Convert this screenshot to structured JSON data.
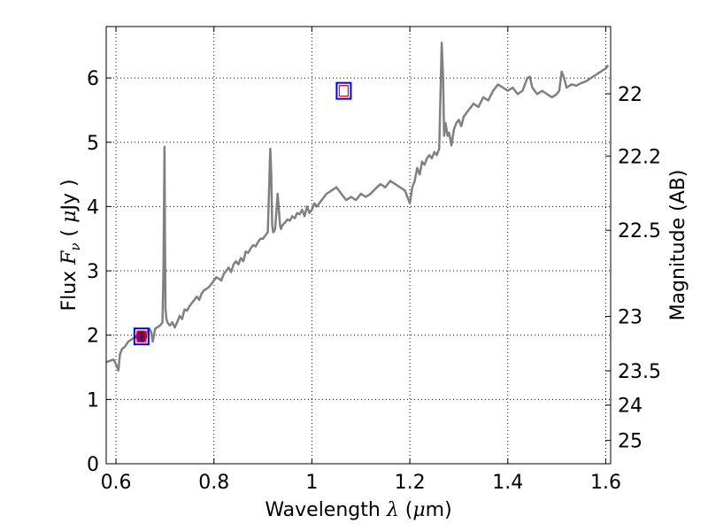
{
  "chart_data": {
    "type": "line",
    "xlabel": {
      "prefix": "Wavelength ",
      "symbol": "λ",
      "suffix_open": " (",
      "unit_symbol": "μ",
      "unit_rest": "m)"
    },
    "ylabel": {
      "prefix": "Flux ",
      "symbol": "F",
      "subscript": "ν",
      "paren_open": " ( ",
      "unit_symbol": "μ",
      "unit_rest": "Jy )"
    },
    "y2label": "Magnitude (AB)",
    "xlim": [
      0.58,
      1.61
    ],
    "ylim": [
      0,
      6.8
    ],
    "xticks": [
      0.6,
      0.8,
      1.0,
      1.2,
      1.4,
      1.6
    ],
    "xtick_labels": [
      "0.6",
      "0.8",
      "1",
      "1.2",
      "1.4",
      "1.6"
    ],
    "yticks": [
      0,
      1,
      2,
      3,
      4,
      5,
      6
    ],
    "ytick_labels": [
      "0",
      "1",
      "2",
      "3",
      "4",
      "5",
      "6"
    ],
    "y2ticks": [
      22,
      22.2,
      22.5,
      23,
      23.5,
      24,
      25
    ],
    "y2tick_labels": [
      "22",
      "22.2",
      "22.5",
      "23",
      "23.5",
      "24",
      "25"
    ],
    "grid": true,
    "colors": {
      "spectrum": "#808080",
      "box": "#0000ff",
      "model_square": "#ff0000",
      "observed_point": "#800080"
    },
    "series": [
      {
        "x": [
          0.58,
          0.595,
          0.6,
          0.605,
          0.608,
          0.612,
          0.618,
          0.625,
          0.635,
          0.645,
          0.655,
          0.662,
          0.668,
          0.672,
          0.675,
          0.68,
          0.69,
          0.695,
          0.697,
          0.699,
          0.7,
          0.701,
          0.703,
          0.705,
          0.71,
          0.715,
          0.72,
          0.725,
          0.73,
          0.735,
          0.74,
          0.745,
          0.75,
          0.755,
          0.76,
          0.765,
          0.77,
          0.775,
          0.78,
          0.785,
          0.79,
          0.795,
          0.8,
          0.805,
          0.81,
          0.815,
          0.82,
          0.825,
          0.83,
          0.835,
          0.84,
          0.845,
          0.85,
          0.855,
          0.86,
          0.865,
          0.87,
          0.875,
          0.88,
          0.885,
          0.89,
          0.895,
          0.9,
          0.905,
          0.91,
          0.915,
          0.917,
          0.919,
          0.921,
          0.923,
          0.925,
          0.93,
          0.935,
          0.937,
          0.939,
          0.941,
          0.945,
          0.95,
          0.955,
          0.96,
          0.965,
          0.97,
          0.975,
          0.98,
          0.985,
          0.99,
          0.995,
          1.0,
          1.005,
          1.01,
          1.02,
          1.03,
          1.04,
          1.05,
          1.06,
          1.07,
          1.08,
          1.09,
          1.1,
          1.11,
          1.12,
          1.13,
          1.14,
          1.15,
          1.16,
          1.17,
          1.18,
          1.19,
          1.2,
          1.205,
          1.21,
          1.215,
          1.22,
          1.225,
          1.23,
          1.235,
          1.24,
          1.245,
          1.25,
          1.255,
          1.26,
          1.265,
          1.268,
          1.27,
          1.273,
          1.277,
          1.28,
          1.285,
          1.29,
          1.295,
          1.3,
          1.305,
          1.31,
          1.32,
          1.33,
          1.34,
          1.35,
          1.36,
          1.37,
          1.38,
          1.39,
          1.4,
          1.41,
          1.42,
          1.43,
          1.44,
          1.445,
          1.45,
          1.455,
          1.46,
          1.47,
          1.48,
          1.49,
          1.5,
          1.505,
          1.51,
          1.515,
          1.52,
          1.53,
          1.54,
          1.55,
          1.56,
          1.57,
          1.58,
          1.59,
          1.6,
          1.605
        ],
        "y": [
          1.58,
          1.62,
          1.55,
          1.45,
          1.7,
          1.78,
          1.82,
          1.9,
          1.95,
          1.98,
          2.05,
          2.02,
          2.1,
          2.05,
          1.9,
          2.1,
          2.15,
          2.2,
          3.0,
          4.93,
          3.5,
          2.4,
          2.25,
          2.2,
          2.15,
          2.2,
          2.12,
          2.2,
          2.3,
          2.25,
          2.4,
          2.38,
          2.45,
          2.5,
          2.55,
          2.6,
          2.55,
          2.65,
          2.7,
          2.72,
          2.75,
          2.8,
          2.85,
          2.9,
          2.88,
          2.85,
          2.95,
          3.0,
          3.05,
          2.98,
          3.1,
          3.15,
          3.1,
          3.2,
          3.15,
          3.3,
          3.28,
          3.35,
          3.4,
          3.38,
          3.45,
          3.5,
          3.5,
          3.55,
          3.6,
          4.9,
          4.5,
          3.7,
          3.6,
          3.62,
          3.65,
          4.2,
          3.7,
          3.65,
          3.7,
          3.72,
          3.75,
          3.8,
          3.78,
          3.85,
          3.82,
          3.9,
          3.88,
          3.95,
          3.85,
          4.0,
          3.9,
          3.95,
          4.05,
          4.0,
          4.1,
          4.2,
          4.25,
          4.3,
          4.2,
          4.1,
          4.15,
          4.1,
          4.2,
          4.15,
          4.2,
          4.28,
          4.35,
          4.3,
          4.4,
          4.35,
          4.3,
          4.25,
          4.05,
          4.3,
          4.4,
          4.6,
          4.5,
          4.7,
          4.65,
          4.75,
          4.8,
          4.75,
          4.85,
          4.8,
          4.9,
          6.55,
          6.0,
          5.1,
          5.3,
          5.1,
          5.15,
          4.95,
          5.2,
          5.3,
          5.35,
          5.25,
          5.4,
          5.5,
          5.6,
          5.55,
          5.7,
          5.65,
          5.8,
          5.9,
          5.85,
          5.8,
          5.85,
          5.75,
          5.8,
          6.0,
          6.02,
          5.85,
          5.8,
          5.75,
          5.8,
          5.75,
          5.7,
          5.75,
          5.8,
          6.1,
          6.0,
          5.85,
          5.9,
          5.88,
          5.92,
          5.95,
          6.0,
          6.05,
          6.1,
          6.15,
          6.2
        ]
      }
    ],
    "markers": [
      {
        "type": "observed-point",
        "x": 0.652,
        "y": 1.98,
        "yerr": 0.08
      },
      {
        "type": "model-box",
        "x": 0.652,
        "y": 1.98
      },
      {
        "type": "model-box",
        "x": 1.065,
        "y": 5.8
      }
    ]
  }
}
